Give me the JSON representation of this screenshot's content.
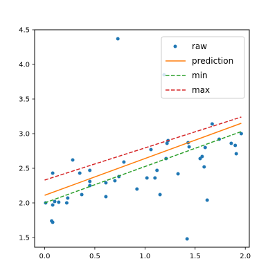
{
  "chart_data": {
    "type": "scatter",
    "title": "",
    "xlabel": "",
    "ylabel": "",
    "xlim": [
      -0.1,
      2.04
    ],
    "ylim": [
      1.36,
      4.5
    ],
    "xticks": [
      0.0,
      0.5,
      1.0,
      1.5,
      2.0
    ],
    "xtick_labels": [
      "0.0",
      "0.5",
      "1.0",
      "1.5",
      "2.0"
    ],
    "yticks": [
      1.5,
      2.0,
      2.5,
      3.0,
      3.5,
      4.0,
      4.5
    ],
    "ytick_labels": [
      "1.5",
      "2.0",
      "2.5",
      "3.0",
      "3.5",
      "4.0",
      "4.5"
    ],
    "grid": false,
    "legend": {
      "placement": "top-right"
    },
    "scatter": {
      "name": "raw",
      "color": "#1f77b4",
      "points": [
        [
          0.01,
          2.0
        ],
        [
          0.07,
          1.74
        ],
        [
          0.08,
          1.72
        ],
        [
          0.08,
          1.97
        ],
        [
          0.08,
          2.43
        ],
        [
          0.1,
          2.02
        ],
        [
          0.14,
          2.01
        ],
        [
          0.22,
          2.0
        ],
        [
          0.23,
          2.07
        ],
        [
          0.28,
          2.62
        ],
        [
          0.35,
          2.43
        ],
        [
          0.37,
          2.12
        ],
        [
          0.45,
          2.25
        ],
        [
          0.45,
          2.31
        ],
        [
          0.45,
          2.47
        ],
        [
          0.61,
          2.09
        ],
        [
          0.61,
          2.29
        ],
        [
          0.7,
          2.32
        ],
        [
          0.73,
          4.37
        ],
        [
          0.74,
          2.38
        ],
        [
          0.79,
          2.59
        ],
        [
          0.92,
          2.2
        ],
        [
          1.02,
          2.36
        ],
        [
          1.06,
          2.77
        ],
        [
          1.1,
          2.36
        ],
        [
          1.12,
          2.47
        ],
        [
          1.15,
          2.12
        ],
        [
          1.19,
          3.85
        ],
        [
          1.21,
          2.64
        ],
        [
          1.22,
          2.86
        ],
        [
          1.23,
          2.9
        ],
        [
          1.33,
          2.42
        ],
        [
          1.42,
          1.48
        ],
        [
          1.43,
          2.87
        ],
        [
          1.44,
          2.81
        ],
        [
          1.55,
          2.64
        ],
        [
          1.57,
          2.67
        ],
        [
          1.59,
          2.52
        ],
        [
          1.6,
          2.8
        ],
        [
          1.62,
          2.04
        ],
        [
          1.67,
          3.14
        ],
        [
          1.74,
          2.92
        ],
        [
          1.86,
          2.86
        ],
        [
          1.9,
          2.83
        ],
        [
          1.91,
          2.71
        ],
        [
          1.96,
          3.0
        ]
      ]
    },
    "series": [
      {
        "name": "prediction",
        "color": "#ff7f0e",
        "style": "solid",
        "x": [
          0.0,
          1.96
        ],
        "y": [
          2.11,
          3.15
        ]
      },
      {
        "name": "min",
        "color": "#2ca02c",
        "style": "dashed",
        "x": [
          0.0,
          1.96
        ],
        "y": [
          2.0,
          3.03
        ]
      },
      {
        "name": "max",
        "color": "#d62728",
        "style": "dashed",
        "x": [
          0.0,
          1.96
        ],
        "y": [
          2.33,
          3.24
        ]
      }
    ]
  }
}
